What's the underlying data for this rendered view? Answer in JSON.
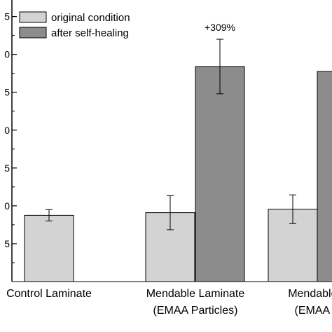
{
  "chart_data": {
    "type": "bar",
    "title": "",
    "xlabel": "",
    "ylabel": "",
    "ylim": [
      0,
      7.4
    ],
    "grid": false,
    "legend_position": "top-left",
    "y_tick_labels": [
      "5",
      "0",
      "5",
      "0",
      "5",
      "0",
      "5"
    ],
    "y_tick_values": [
      1,
      2,
      3,
      4,
      5,
      6,
      7
    ],
    "categories": [
      {
        "line1": "Control Laminate",
        "line2": ""
      },
      {
        "line1": "Mendable Laminate",
        "line2": "(EMAA Particles)"
      },
      {
        "line1": "Mendable L",
        "line2": "(EMAA P"
      }
    ],
    "series": [
      {
        "name": "original condition",
        "color": "#d3d3d3",
        "values": [
          1.75,
          1.82,
          1.91
        ],
        "errors": [
          0.15,
          0.45,
          0.38
        ]
      },
      {
        "name": "after self-healing",
        "color": "#8c8c8c",
        "values": [
          null,
          5.68,
          5.55
        ],
        "errors": [
          null,
          0.72,
          0.7
        ]
      }
    ],
    "annotations": [
      {
        "text": "+309%",
        "category_index": 1
      },
      {
        "text": "+",
        "category_index": 2
      }
    ]
  }
}
